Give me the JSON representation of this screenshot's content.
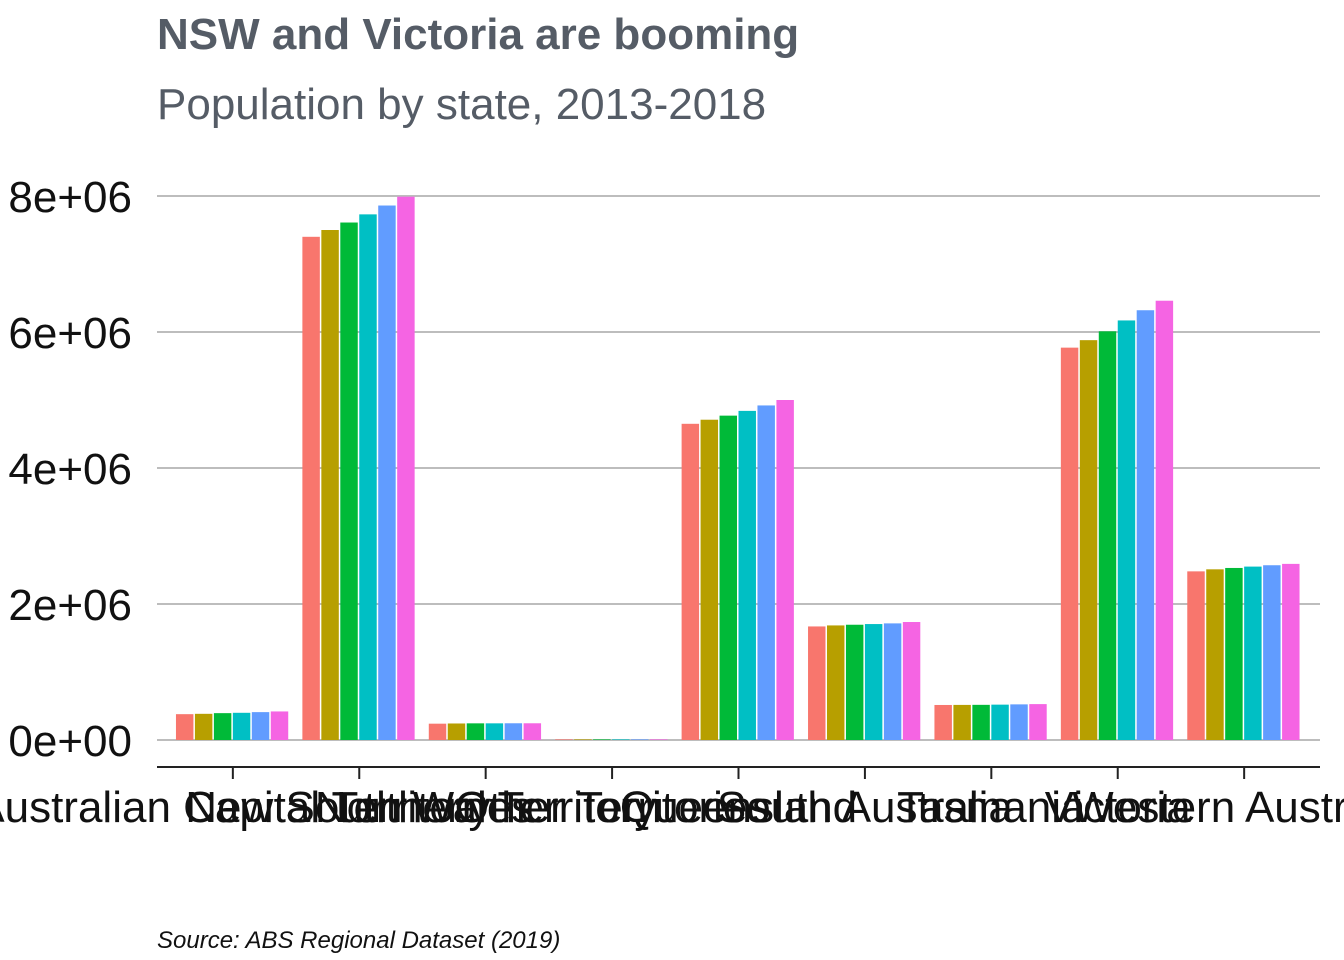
{
  "chart_data": {
    "type": "bar",
    "title": "NSW and Victoria are booming",
    "subtitle": "Population by state, 2013-2018",
    "caption": "Source: ABS Regional Dataset (2019)",
    "xlabel": "",
    "ylabel": "",
    "ylim": [
      0,
      8000000
    ],
    "yticks": [
      "0e+00",
      "2e+06",
      "4e+06",
      "6e+06",
      "8e+06"
    ],
    "ytick_values": [
      0,
      2000000,
      4000000,
      6000000,
      8000000
    ],
    "grid": "horizontal",
    "legend": "none",
    "categories": [
      "Australian Capital Territory",
      "New South Wales",
      "Northern Territory",
      "Other Territories",
      "Queensland",
      "South Australia",
      "Tasmania",
      "Victoria",
      "Western Australia"
    ],
    "series": [
      {
        "color": "#F8766D",
        "values": [
          380000,
          7400000,
          240000,
          5000,
          4650000,
          1670000,
          515000,
          5770000,
          2480000
        ]
      },
      {
        "color": "#B79F00",
        "values": [
          385000,
          7500000,
          243000,
          5000,
          4710000,
          1685000,
          516000,
          5880000,
          2510000
        ]
      },
      {
        "color": "#00BA38",
        "values": [
          395000,
          7610000,
          245000,
          5000,
          4770000,
          1695000,
          517000,
          6010000,
          2530000
        ]
      },
      {
        "color": "#00BFC4",
        "values": [
          400000,
          7730000,
          245000,
          5000,
          4840000,
          1705000,
          520000,
          6170000,
          2550000
        ]
      },
      {
        "color": "#619CFF",
        "values": [
          410000,
          7860000,
          246000,
          5000,
          4920000,
          1715000,
          524000,
          6320000,
          2570000
        ]
      },
      {
        "color": "#F564E3",
        "values": [
          420000,
          7990000,
          246000,
          5000,
          5000000,
          1735000,
          528000,
          6460000,
          2590000
        ]
      }
    ]
  }
}
